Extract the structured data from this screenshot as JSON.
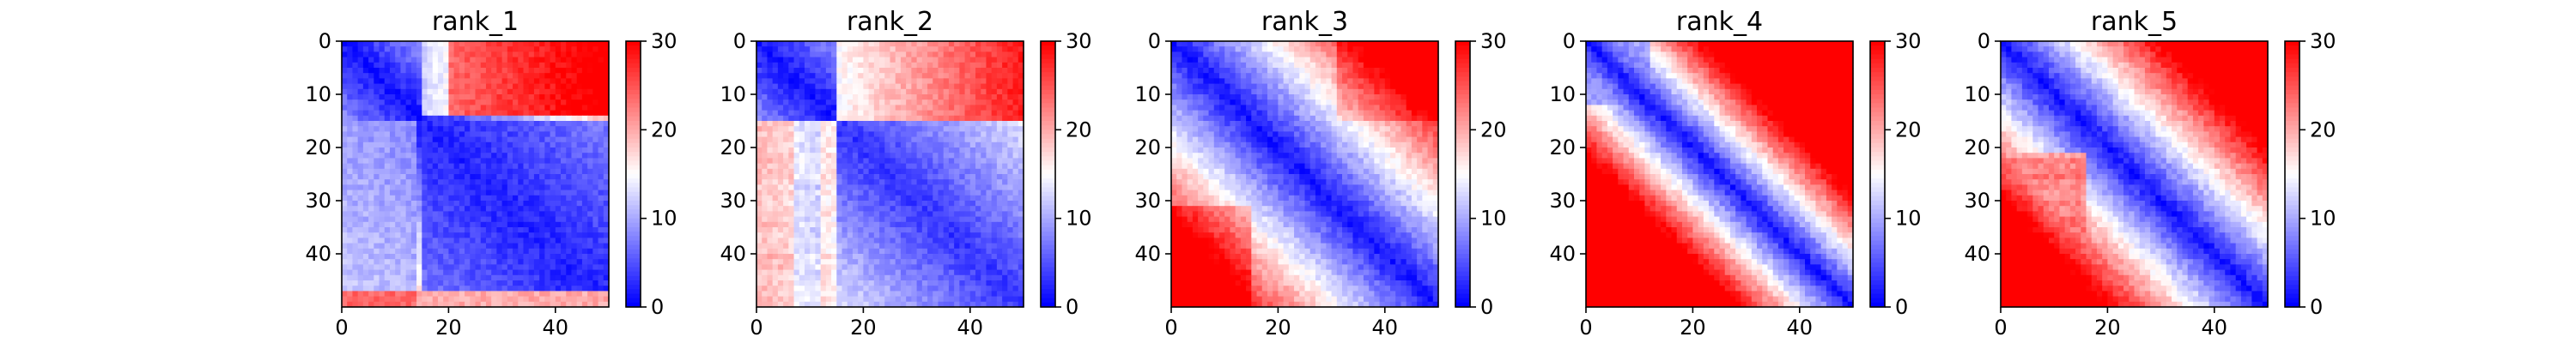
{
  "chart_data": [
    {
      "type": "heatmap",
      "title": "rank_1",
      "n": 50,
      "colormap": "bwr",
      "vmin": 0,
      "vmax": 30,
      "xticks": [
        0,
        20,
        40
      ],
      "yticks": [
        0,
        10,
        20,
        30,
        40
      ],
      "colorbar_ticks": [
        0,
        10,
        20,
        30
      ]
    },
    {
      "type": "heatmap",
      "title": "rank_2",
      "n": 50,
      "colormap": "bwr",
      "vmin": 0,
      "vmax": 30,
      "xticks": [
        0,
        20,
        40
      ],
      "yticks": [
        0,
        10,
        20,
        30,
        40
      ],
      "colorbar_ticks": [
        0,
        10,
        20,
        30
      ]
    },
    {
      "type": "heatmap",
      "title": "rank_3",
      "n": 50,
      "colormap": "bwr",
      "vmin": 0,
      "vmax": 30,
      "xticks": [
        0,
        20,
        40
      ],
      "yticks": [
        0,
        10,
        20,
        30,
        40
      ],
      "colorbar_ticks": [
        0,
        10,
        20,
        30
      ]
    },
    {
      "type": "heatmap",
      "title": "rank_4",
      "n": 50,
      "colormap": "bwr",
      "vmin": 0,
      "vmax": 30,
      "xticks": [
        0,
        20,
        40
      ],
      "yticks": [
        0,
        10,
        20,
        30,
        40
      ],
      "colorbar_ticks": [
        0,
        10,
        20,
        30
      ]
    },
    {
      "type": "heatmap",
      "title": "rank_5",
      "n": 50,
      "colormap": "bwr",
      "vmin": 0,
      "vmax": 30,
      "xticks": [
        0,
        20,
        40
      ],
      "yticks": [
        0,
        10,
        20,
        30,
        40
      ],
      "colorbar_ticks": [
        0,
        10,
        20,
        30
      ]
    }
  ]
}
